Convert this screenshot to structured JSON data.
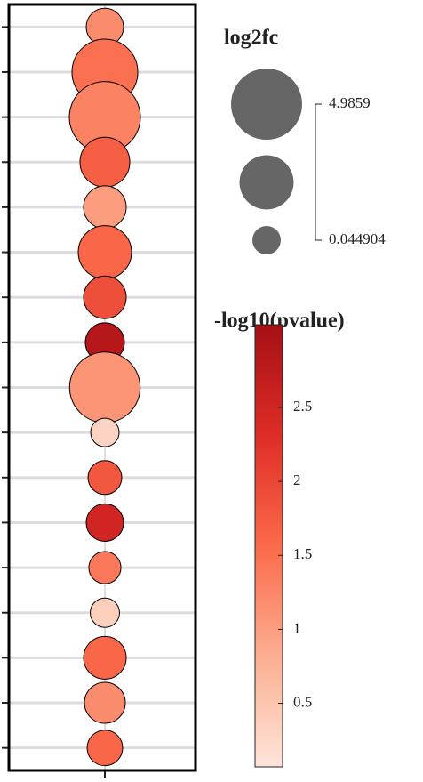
{
  "chart_data": {
    "type": "bubble",
    "categories": [
      null,
      null,
      null,
      null,
      null,
      null,
      null,
      null,
      null,
      null,
      null,
      null,
      null,
      null,
      null,
      null,
      null
    ],
    "sizes": [
      0.73,
      4.14,
      4.9859,
      1.99,
      1.22,
      2.41,
      1.22,
      0.88,
      4.9,
      0.044904,
      0.43,
      0.73,
      0.3,
      0.1,
      1.22,
      1.05,
      0.57
    ],
    "values": [
      1.2,
      1.5,
      1.3,
      1.7,
      1.0,
      1.6,
      1.9,
      2.85,
      1.1,
      0.3,
      1.8,
      2.5,
      1.4,
      0.35,
      1.6,
      1.2,
      1.6
    ],
    "size_title": "log2fc",
    "size_lim": [
      0.044904,
      4.9859
    ],
    "size_legend_values": [
      4.9859,
      2.5154,
      0.044904
    ],
    "color_title": "-log10(pvalue)",
    "clim": [
      0.07,
      3.06
    ],
    "cticks": [
      0.5,
      1,
      1.5,
      2,
      2.5
    ],
    "colormap": [
      "#fee5d9",
      "#fcae91",
      "#fb6a4a",
      "#de2d26",
      "#a50f15"
    ],
    "grid": true
  }
}
